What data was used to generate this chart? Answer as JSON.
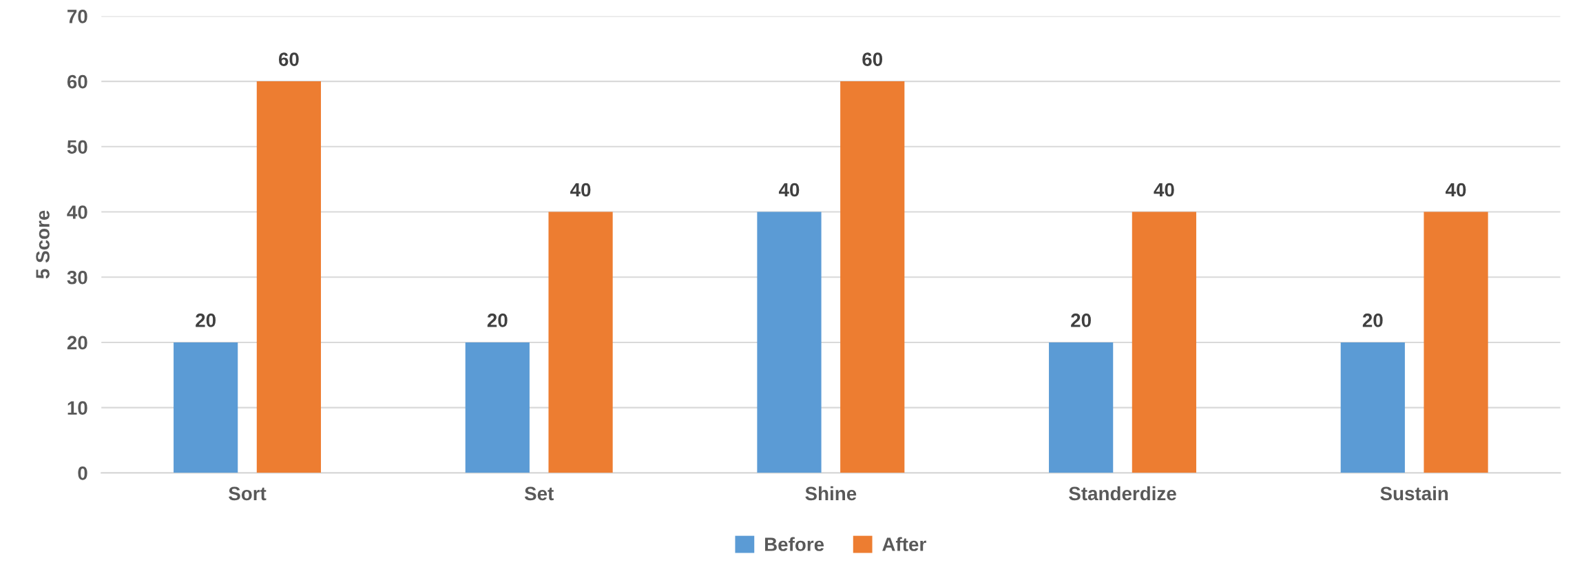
{
  "chart_data": {
    "type": "bar",
    "ylabel": "5 Score",
    "categories": [
      "Sort",
      "Set",
      "Shine",
      "Standerdize",
      "Sustain"
    ],
    "series": [
      {
        "name": "Before",
        "color": "#5b9bd5",
        "values": [
          20,
          20,
          40,
          20,
          20
        ]
      },
      {
        "name": "After",
        "color": "#ed7d31",
        "values": [
          60,
          40,
          60,
          40,
          40
        ]
      }
    ],
    "ylim": [
      0,
      70
    ],
    "yticks": [
      0,
      10,
      20,
      30,
      40,
      50,
      60,
      70
    ],
    "grid": "y",
    "legend": "bottom",
    "data_labels": true
  }
}
